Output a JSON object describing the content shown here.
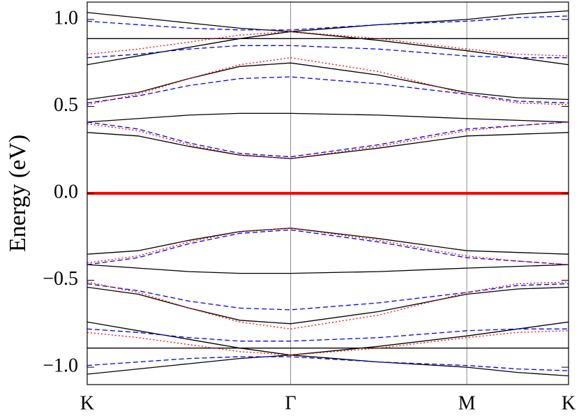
{
  "chart_data": {
    "type": "line",
    "y_label": "Energy (eV)",
    "x": [
      0,
      0.25,
      0.5,
      0.75,
      1.0,
      1.433,
      1.866,
      2.116,
      2.366
    ],
    "xlim": [
      0,
      2.366
    ],
    "xticks": [
      {
        "value": 0,
        "label": "K"
      },
      {
        "value": 1.0,
        "label": "Γ"
      },
      {
        "value": 1.866,
        "label": "M"
      },
      {
        "value": 2.366,
        "label": "K"
      }
    ],
    "ylim": [
      -1.1,
      1.1
    ],
    "yticks": [
      {
        "value": -1.0,
        "label": "−1.0"
      },
      {
        "value": -0.5,
        "label": "−0.5"
      },
      {
        "value": 0,
        "label": "0.0"
      },
      0.5,
      {
        "value": 1.0,
        "label": "1.0"
      }
    ],
    "fermi_level": {
      "value": 0,
      "color": "#ff0000"
    },
    "series": [
      {
        "color": "#000000",
        "style": "solid",
        "values": [
          0.35,
          0.33,
          0.27,
          0.22,
          0.2,
          0.26,
          0.33,
          0.34,
          0.35
        ]
      },
      {
        "color": "#000000",
        "style": "solid",
        "values": [
          0.41,
          0.43,
          0.45,
          0.46,
          0.46,
          0.45,
          0.43,
          0.42,
          0.41
        ]
      },
      {
        "color": "#000000",
        "style": "solid",
        "values": [
          0.54,
          0.58,
          0.66,
          0.73,
          0.75,
          0.68,
          0.58,
          0.55,
          0.54
        ]
      },
      {
        "color": "#000000",
        "style": "solid",
        "values": [
          0.74,
          0.79,
          0.84,
          0.89,
          0.93,
          0.88,
          0.82,
          0.78,
          0.74
        ]
      },
      {
        "color": "#000000",
        "style": "solid",
        "values": [
          0.89,
          0.89,
          0.89,
          0.89,
          0.89,
          0.89,
          0.89,
          0.89,
          0.89
        ]
      },
      {
        "color": "#000000",
        "style": "solid",
        "values": [
          1.04,
          1.01,
          0.98,
          0.95,
          0.93,
          0.97,
          1.0,
          1.03,
          1.05
        ]
      },
      {
        "color": "#0000ff",
        "style": "dashed",
        "values": [
          0.41,
          0.37,
          0.29,
          0.23,
          0.21,
          0.28,
          0.37,
          0.39,
          0.41
        ]
      },
      {
        "color": "#0000ff",
        "style": "dashed",
        "values": [
          0.52,
          0.56,
          0.62,
          0.66,
          0.67,
          0.63,
          0.57,
          0.53,
          0.52
        ]
      },
      {
        "color": "#0000ff",
        "style": "dashed",
        "values": [
          0.78,
          0.8,
          0.83,
          0.85,
          0.85,
          0.83,
          0.79,
          0.78,
          0.78
        ]
      },
      {
        "color": "#0000ff",
        "style": "dashed",
        "values": [
          0.99,
          0.97,
          0.95,
          0.94,
          0.94,
          0.97,
          0.99,
          1.01,
          1.02
        ]
      },
      {
        "color": "#ff0000",
        "style": "dotted",
        "values": [
          0.4,
          0.36,
          0.28,
          0.22,
          0.2,
          0.27,
          0.36,
          0.39,
          0.41
        ]
      },
      {
        "color": "#ff0000",
        "style": "dotted",
        "values": [
          0.51,
          0.57,
          0.66,
          0.74,
          0.78,
          0.7,
          0.57,
          0.52,
          0.51
        ]
      },
      {
        "color": "#ff0000",
        "style": "dotted",
        "values": [
          0.8,
          0.83,
          0.87,
          0.91,
          0.93,
          0.89,
          0.83,
          0.8,
          0.79
        ]
      },
      {
        "color": "#000000",
        "style": "solid",
        "values": [
          -0.35,
          -0.33,
          -0.27,
          -0.22,
          -0.2,
          -0.26,
          -0.33,
          -0.34,
          -0.35
        ]
      },
      {
        "color": "#000000",
        "style": "solid",
        "values": [
          -0.41,
          -0.43,
          -0.45,
          -0.46,
          -0.46,
          -0.45,
          -0.43,
          -0.42,
          -0.41
        ]
      },
      {
        "color": "#000000",
        "style": "solid",
        "values": [
          -0.54,
          -0.58,
          -0.66,
          -0.73,
          -0.75,
          -0.68,
          -0.58,
          -0.55,
          -0.54
        ]
      },
      {
        "color": "#000000",
        "style": "solid",
        "values": [
          -0.74,
          -0.79,
          -0.84,
          -0.89,
          -0.93,
          -0.88,
          -0.82,
          -0.78,
          -0.74
        ]
      },
      {
        "color": "#000000",
        "style": "solid",
        "values": [
          -0.89,
          -0.89,
          -0.89,
          -0.89,
          -0.89,
          -0.89,
          -0.89,
          -0.89,
          -0.89
        ]
      },
      {
        "color": "#000000",
        "style": "solid",
        "values": [
          -1.04,
          -1.01,
          -0.98,
          -0.95,
          -0.93,
          -0.97,
          -1.0,
          -1.03,
          -1.05
        ]
      },
      {
        "color": "#0000ff",
        "style": "dashed",
        "values": [
          -0.41,
          -0.37,
          -0.29,
          -0.23,
          -0.21,
          -0.28,
          -0.37,
          -0.39,
          -0.41
        ]
      },
      {
        "color": "#0000ff",
        "style": "dashed",
        "values": [
          -0.52,
          -0.56,
          -0.62,
          -0.66,
          -0.67,
          -0.63,
          -0.57,
          -0.53,
          -0.52
        ]
      },
      {
        "color": "#0000ff",
        "style": "dashed",
        "values": [
          -0.78,
          -0.8,
          -0.83,
          -0.85,
          -0.85,
          -0.83,
          -0.79,
          -0.78,
          -0.78
        ]
      },
      {
        "color": "#0000ff",
        "style": "dashed",
        "values": [
          -0.99,
          -0.97,
          -0.95,
          -0.94,
          -0.94,
          -0.97,
          -0.99,
          -1.01,
          -1.02
        ]
      },
      {
        "color": "#ff0000",
        "style": "dotted",
        "values": [
          -0.4,
          -0.36,
          -0.28,
          -0.22,
          -0.2,
          -0.27,
          -0.36,
          -0.39,
          -0.41
        ]
      },
      {
        "color": "#ff0000",
        "style": "dotted",
        "values": [
          -0.51,
          -0.57,
          -0.66,
          -0.74,
          -0.78,
          -0.7,
          -0.57,
          -0.52,
          -0.51
        ]
      },
      {
        "color": "#ff0000",
        "style": "dotted",
        "values": [
          -0.8,
          -0.83,
          -0.87,
          -0.91,
          -0.93,
          -0.89,
          -0.83,
          -0.8,
          -0.79
        ]
      }
    ]
  }
}
